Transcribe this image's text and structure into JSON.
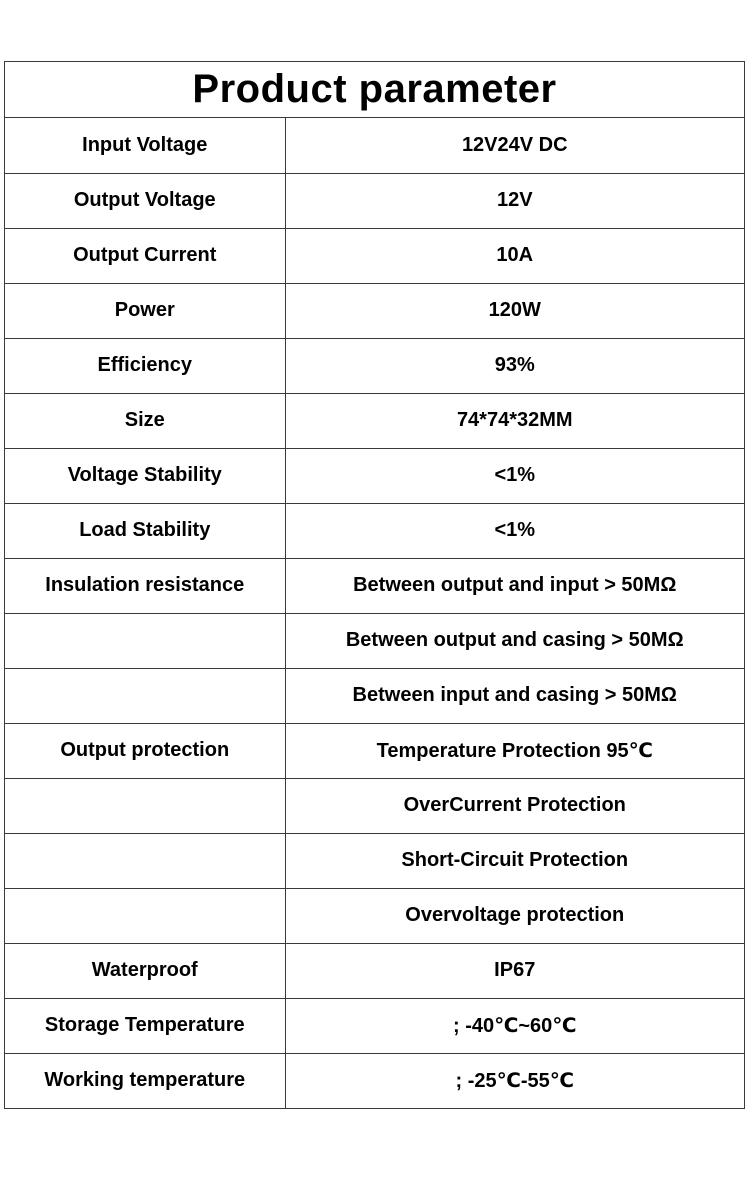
{
  "title": "Product parameter",
  "rows": [
    {
      "param": "Input Voltage",
      "value": "12V24V DC"
    },
    {
      "param": "Output Voltage",
      "value": "12V"
    },
    {
      "param": "Output Current",
      "value": "10A"
    },
    {
      "param": "Power",
      "value": "120W"
    },
    {
      "param": "Efficiency",
      "value": "93%"
    },
    {
      "param": "Size",
      "value": "74*74*32MM"
    },
    {
      "param": "Voltage Stability",
      "value": "<1%"
    },
    {
      "param": "Load Stability",
      "value": "<1%"
    },
    {
      "param": "Insulation resistance",
      "value": "Between output and input > 50MΩ"
    },
    {
      "param": "",
      "value": "Between output and casing > 50MΩ"
    },
    {
      "param": "",
      "value": "Between input and casing > 50MΩ"
    },
    {
      "param": "Output protection",
      "value": "Temperature Protection 95℃"
    },
    {
      "param": "",
      "value": "OverCurrent Protection"
    },
    {
      "param": "",
      "value": "Short-Circuit Protection"
    },
    {
      "param": "",
      "value": "Overvoltage protection"
    },
    {
      "param": "Waterproof",
      "value": "IP67"
    },
    {
      "param": "Storage Temperature",
      "value": "; -40℃~60℃"
    },
    {
      "param": "Working temperature",
      "value": "; -25℃-55℃"
    }
  ]
}
